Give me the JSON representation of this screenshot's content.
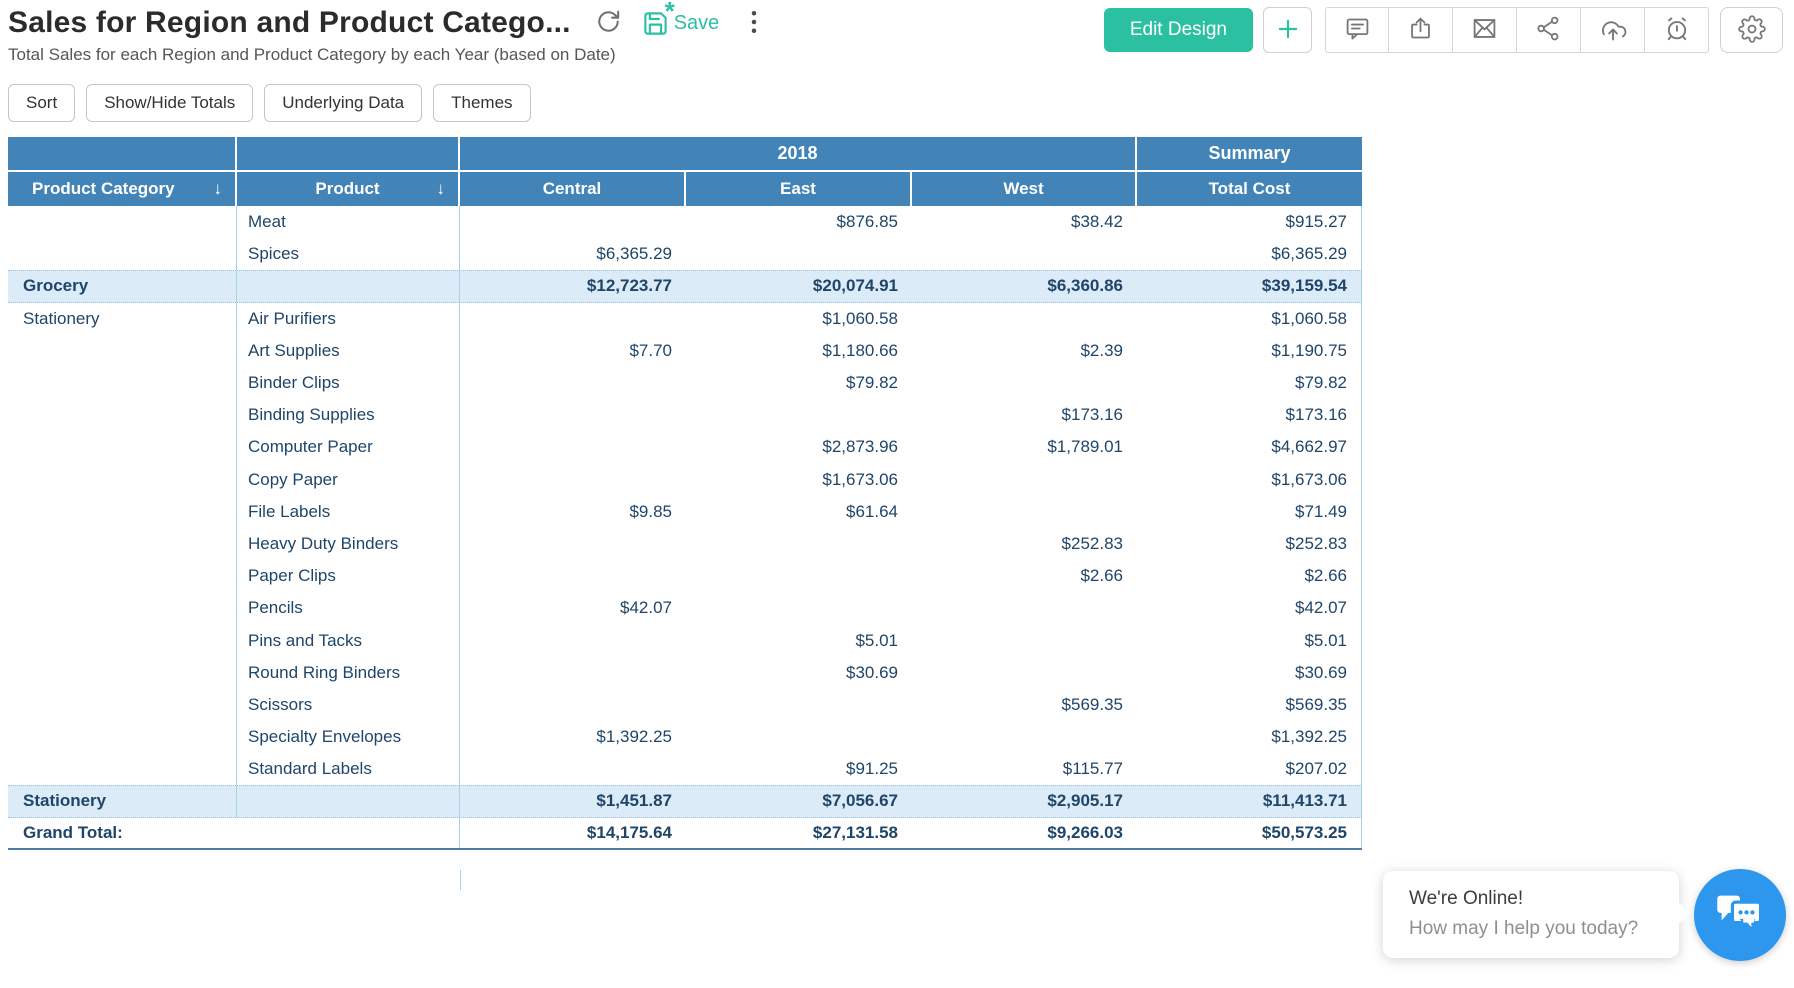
{
  "page": {
    "title": "Sales for Region and Product Catego...",
    "subtitle": "Total Sales for each Region and Product Category by each Year (based on Date)"
  },
  "title_actions": {
    "save_label": "Save",
    "icons": [
      "refresh-icon",
      "save-icon",
      "more-options-icon"
    ]
  },
  "header_toolbar": {
    "edit_design_label": "Edit Design",
    "icons": [
      "add-icon",
      "comment-icon",
      "export-icon",
      "email-icon",
      "share-icon",
      "cloud-upload-icon",
      "schedule-icon",
      "settings-icon"
    ]
  },
  "action_buttons": [
    "Sort",
    "Show/Hide Totals",
    "Underlying Data",
    "Themes"
  ],
  "table": {
    "group_row": [
      {
        "label": "",
        "cols": 1
      },
      {
        "label": "",
        "cols": 1
      },
      {
        "label": "2018",
        "cols": 3
      },
      {
        "label": "Summary",
        "cols": 1
      }
    ],
    "columns": [
      {
        "label": "Product Category",
        "sortable": true
      },
      {
        "label": "Product",
        "sortable": true
      },
      {
        "label": "Central"
      },
      {
        "label": "East"
      },
      {
        "label": "West"
      },
      {
        "label": "Total Cost"
      }
    ],
    "rows": [
      {
        "category": "",
        "product": "Meat",
        "central": "",
        "east": "$876.85",
        "west": "$38.42",
        "total": "$915.27"
      },
      {
        "category": "",
        "product": "Spices",
        "central": "$6,365.29",
        "east": "",
        "west": "",
        "total": "$6,365.29"
      },
      {
        "category": "Grocery",
        "product": "",
        "central": "$12,723.77",
        "east": "$20,074.91",
        "west": "$6,360.86",
        "total": "$39,159.54",
        "type": "subtotal"
      },
      {
        "category": "Stationery",
        "product": "Air Purifiers",
        "central": "",
        "east": "$1,060.58",
        "west": "",
        "total": "$1,060.58"
      },
      {
        "category": "",
        "product": "Art Supplies",
        "central": "$7.70",
        "east": "$1,180.66",
        "west": "$2.39",
        "total": "$1,190.75"
      },
      {
        "category": "",
        "product": "Binder Clips",
        "central": "",
        "east": "$79.82",
        "west": "",
        "total": "$79.82"
      },
      {
        "category": "",
        "product": "Binding Supplies",
        "central": "",
        "east": "",
        "west": "$173.16",
        "total": "$173.16"
      },
      {
        "category": "",
        "product": "Computer Paper",
        "central": "",
        "east": "$2,873.96",
        "west": "$1,789.01",
        "total": "$4,662.97"
      },
      {
        "category": "",
        "product": "Copy Paper",
        "central": "",
        "east": "$1,673.06",
        "west": "",
        "total": "$1,673.06"
      },
      {
        "category": "",
        "product": "File Labels",
        "central": "$9.85",
        "east": "$61.64",
        "west": "",
        "total": "$71.49"
      },
      {
        "category": "",
        "product": "Heavy Duty Binders",
        "central": "",
        "east": "",
        "west": "$252.83",
        "total": "$252.83"
      },
      {
        "category": "",
        "product": "Paper Clips",
        "central": "",
        "east": "",
        "west": "$2.66",
        "total": "$2.66"
      },
      {
        "category": "",
        "product": "Pencils",
        "central": "$42.07",
        "east": "",
        "west": "",
        "total": "$42.07"
      },
      {
        "category": "",
        "product": "Pins and Tacks",
        "central": "",
        "east": "$5.01",
        "west": "",
        "total": "$5.01"
      },
      {
        "category": "",
        "product": "Round Ring Binders",
        "central": "",
        "east": "$30.69",
        "west": "",
        "total": "$30.69"
      },
      {
        "category": "",
        "product": "Scissors",
        "central": "",
        "east": "",
        "west": "$569.35",
        "total": "$569.35"
      },
      {
        "category": "",
        "product": "Specialty Envelopes",
        "central": "$1,392.25",
        "east": "",
        "west": "",
        "total": "$1,392.25"
      },
      {
        "category": "",
        "product": "Standard Labels",
        "central": "",
        "east": "$91.25",
        "west": "$115.77",
        "total": "$207.02"
      },
      {
        "category": "Stationery",
        "product": "",
        "central": "$1,451.87",
        "east": "$7,056.67",
        "west": "$2,905.17",
        "total": "$11,413.71",
        "type": "subtotal"
      },
      {
        "category": "Grand Total:",
        "product": "",
        "central": "$14,175.64",
        "east": "$27,131.58",
        "west": "$9,266.03",
        "total": "$50,573.25",
        "type": "grand"
      }
    ]
  },
  "chat": {
    "status": "We're Online!",
    "greeting": "How may I help you today?",
    "icon": "chat-bubbles-icon"
  },
  "colors": {
    "accent_teal": "#2cc0a2",
    "header_blue": "#4284b7",
    "subtotal_row_bg": "#dcebf8",
    "chat_blue": "#2d97ee",
    "data_text": "#1f4569"
  }
}
